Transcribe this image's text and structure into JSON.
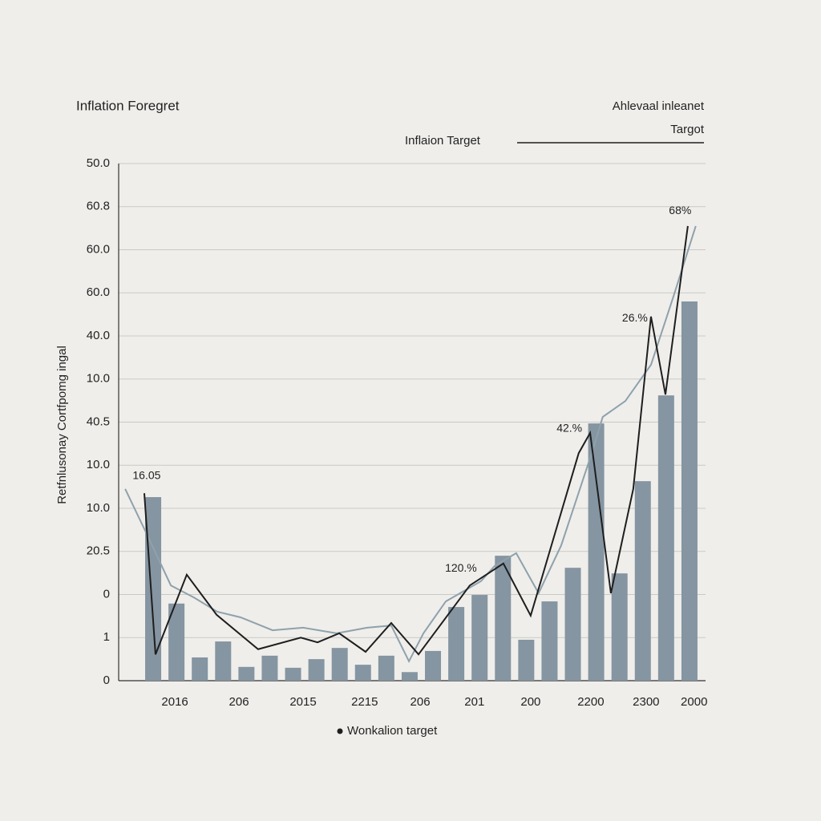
{
  "chart_data": {
    "type": "bar",
    "title": "Inflation Foregret",
    "note": [
      "Ahlevaal inleanet",
      "Targot"
    ],
    "ylabel": "Retfnlusonay Cortfpomg ingal",
    "grid": true,
    "xlim": [
      -1.48,
      23.69
    ],
    "xticks": [
      {
        "value": 0.93,
        "label": "2016"
      },
      {
        "value": 3.68,
        "label": "206"
      },
      {
        "value": 6.43,
        "label": "2015"
      },
      {
        "value": 9.07,
        "label": "2215"
      },
      {
        "value": 11.45,
        "label": "206"
      },
      {
        "value": 13.78,
        "label": "201"
      },
      {
        "value": 16.19,
        "label": "200"
      },
      {
        "value": 18.77,
        "label": "2200"
      },
      {
        "value": 21.14,
        "label": "2300"
      },
      {
        "value": 23.2,
        "label": "2000"
      }
    ],
    "ylim": [
      0,
      12
    ],
    "yticks": [
      0,
      1,
      {
        "value": 2,
        "label": "0"
      },
      {
        "value": 3,
        "label": "20.5"
      },
      {
        "value": 4,
        "label": "10.0"
      },
      {
        "value": 5,
        "label": "10.0"
      },
      {
        "value": 6,
        "label": "40.5"
      },
      {
        "value": 7,
        "label": "10.0"
      },
      {
        "value": 8,
        "label": "40.0"
      },
      {
        "value": 9,
        "label": "60.0"
      },
      {
        "value": 10,
        "label": "60.0"
      },
      {
        "value": 11,
        "label": "60.8"
      },
      {
        "value": 12,
        "label": "50.0"
      }
    ],
    "series": [
      {
        "name": "Wonkalion target",
        "type": "bar",
        "color": "#8595a1",
        "x": [
          0,
          1,
          2,
          3,
          4,
          5,
          6,
          7,
          8,
          9,
          10,
          11,
          12,
          13,
          14,
          15,
          16,
          17,
          18,
          19,
          20,
          21,
          22,
          23
        ],
        "values": [
          4.26,
          1.79,
          0.54,
          0.91,
          0.32,
          0.58,
          0.3,
          0.5,
          0.76,
          0.37,
          0.58,
          0.2,
          0.69,
          1.71,
          1.99,
          2.9,
          0.95,
          1.84,
          2.62,
          5.97,
          2.49,
          4.63,
          6.62,
          8.8
        ]
      },
      {
        "type": "line",
        "color": "#8fa1ab",
        "x": [
          -1.2,
          -0.21,
          0.76,
          1.75,
          2.75,
          3.75,
          5.12,
          6.43,
          7.87,
          9.18,
          10.21,
          10.97,
          11.59,
          12.55,
          14.06,
          14.64,
          15.57,
          16.53,
          17.5,
          18.87,
          19.28,
          20.25,
          21.35,
          22.31,
          23.27
        ],
        "values": [
          4.45,
          3.33,
          2.21,
          1.93,
          1.6,
          1.47,
          1.17,
          1.23,
          1.1,
          1.23,
          1.28,
          0.45,
          1.1,
          1.84,
          2.31,
          2.66,
          2.96,
          2.03,
          3.14,
          5.38,
          6.12,
          6.49,
          7.33,
          8.91,
          10.55
        ]
      },
      {
        "name": "Inflaion Target",
        "type": "line",
        "color": "#1e1e1e",
        "x": [
          -0.38,
          0.1,
          1.44,
          2.72,
          4.5,
          6.33,
          7.05,
          7.98,
          9.11,
          10.21,
          11.38,
          13.58,
          15.02,
          16.19,
          18.25,
          18.74,
          19.63,
          20.59,
          21.35,
          21.97,
          22.93
        ],
        "values": [
          4.35,
          0.61,
          2.46,
          1.53,
          0.73,
          1.0,
          0.89,
          1.1,
          0.67,
          1.34,
          0.61,
          2.21,
          2.72,
          1.51,
          5.28,
          5.75,
          2.03,
          4.45,
          8.45,
          6.64,
          10.55
        ]
      }
    ],
    "annotations": [
      {
        "text": "16.05",
        "x": -0.28,
        "y": 4.75
      },
      {
        "text": "120.%",
        "x": 13.2,
        "y": 2.6
      },
      {
        "text": "42.%",
        "x": 17.85,
        "y": 5.85
      },
      {
        "text": "26.%",
        "x": 20.66,
        "y": 8.4
      },
      {
        "text": "68%",
        "x": 22.6,
        "y": 10.9
      }
    ]
  }
}
